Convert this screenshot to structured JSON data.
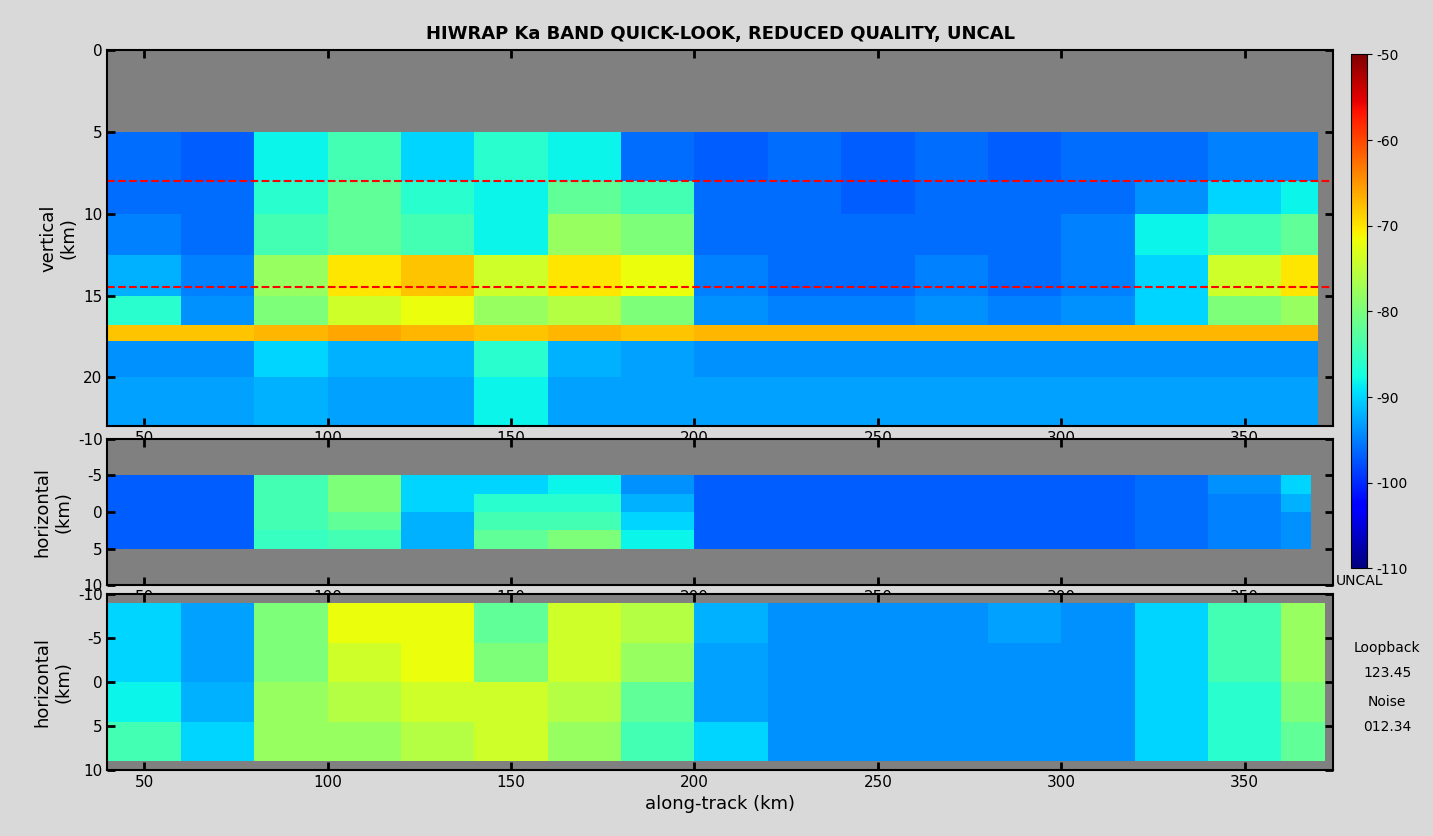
{
  "title": "HIWRAP Ka BAND QUICK-LOOK, REDUCED QUALITY, UNCAL",
  "colorbar": {
    "range": [
      -110,
      -50
    ],
    "ticks": [
      -50,
      -60,
      -70,
      -80,
      -90,
      -100,
      -110
    ],
    "label": "UNCAL"
  },
  "annotations": [
    "Loopback",
    "123.45",
    "Noise",
    "012.34"
  ],
  "chart_data": [
    {
      "type": "heatmap",
      "ylabel": "vertical\n(km)",
      "xlim": [
        40,
        374
      ],
      "xticks": [
        50,
        100,
        150,
        200,
        250,
        300,
        350
      ],
      "ylim": [
        23,
        0
      ],
      "yticks": [
        0,
        5,
        10,
        15,
        20
      ],
      "reference_lines": [
        8,
        14.5
      ],
      "x_edges": [
        40,
        60,
        80,
        100,
        120,
        140,
        160,
        180,
        200,
        220,
        240,
        260,
        280,
        300,
        320,
        340,
        360,
        370
      ],
      "y_edges": [
        5,
        8,
        10,
        12.5,
        15,
        16.8,
        17.8,
        20,
        23
      ],
      "cells": [
        [
          -96,
          -97,
          -88,
          -84,
          -90,
          -86,
          -88,
          -96,
          -97,
          -96,
          -97,
          -96,
          -97,
          -96,
          -96,
          -95,
          -95
        ],
        [
          -96,
          -96,
          -86,
          -82,
          -86,
          -88,
          -82,
          -84,
          -96,
          -96,
          -97,
          -96,
          -96,
          -96,
          -94,
          -90,
          -88
        ],
        [
          -95,
          -96,
          -84,
          -82,
          -84,
          -88,
          -78,
          -80,
          -96,
          -96,
          -96,
          -96,
          -96,
          -95,
          -88,
          -84,
          -82
        ],
        [
          -92,
          -95,
          -78,
          -70,
          -68,
          -74,
          -70,
          -72,
          -95,
          -96,
          -96,
          -95,
          -96,
          -95,
          -90,
          -74,
          -70
        ],
        [
          -86,
          -94,
          -80,
          -74,
          -72,
          -78,
          -76,
          -80,
          -94,
          -95,
          -95,
          -94,
          -95,
          -94,
          -90,
          -80,
          -78
        ],
        [
          -68,
          -68,
          -67,
          -66,
          -67,
          -68,
          -67,
          -68,
          -67,
          -67,
          -67,
          -67,
          -67,
          -67,
          -67,
          -67,
          -67
        ],
        [
          -94,
          -94,
          -90,
          -92,
          -92,
          -86,
          -92,
          -93,
          -94,
          -94,
          -94,
          -94,
          -94,
          -94,
          -94,
          -94,
          -94
        ],
        [
          -93,
          -93,
          -92,
          -93,
          -93,
          -88,
          -93,
          -93,
          -93,
          -93,
          -93,
          -93,
          -93,
          -93,
          -93,
          -93,
          -93
        ]
      ]
    },
    {
      "type": "heatmap",
      "ylabel": "horizontal\n(km)",
      "xlim": [
        40,
        374
      ],
      "xticks": [
        50,
        100,
        150,
        200,
        250,
        300,
        350
      ],
      "ylim": [
        10,
        -10
      ],
      "yticks": [
        -10,
        -5,
        0,
        5,
        10
      ],
      "x_edges": [
        40,
        60,
        80,
        100,
        120,
        140,
        160,
        180,
        200,
        220,
        240,
        260,
        280,
        300,
        320,
        340,
        360,
        368
      ],
      "y_edges": [
        -5,
        -2.5,
        0,
        2.5,
        5
      ],
      "cells": [
        [
          -97,
          -97,
          -84,
          -80,
          -90,
          -90,
          -88,
          -94,
          -97,
          -97,
          -97,
          -97,
          -97,
          -97,
          -96,
          -94,
          -90
        ],
        [
          -97,
          -97,
          -84,
          -80,
          -90,
          -86,
          -86,
          -92,
          -97,
          -97,
          -97,
          -97,
          -97,
          -97,
          -96,
          -95,
          -92
        ],
        [
          -97,
          -97,
          -84,
          -82,
          -92,
          -84,
          -84,
          -90,
          -97,
          -97,
          -97,
          -97,
          -97,
          -97,
          -96,
          -95,
          -94
        ],
        [
          -97,
          -97,
          -85,
          -84,
          -92,
          -82,
          -80,
          -88,
          -97,
          -97,
          -97,
          -97,
          -97,
          -97,
          -96,
          -95,
          -94
        ]
      ]
    },
    {
      "type": "heatmap",
      "ylabel": "horizontal\n(km)",
      "xlabel": "along-track (km)",
      "xlim": [
        40,
        374
      ],
      "xticks": [
        50,
        100,
        150,
        200,
        250,
        300,
        350
      ],
      "ylim": [
        10,
        -10
      ],
      "yticks": [
        -10,
        -5,
        0,
        5,
        10
      ],
      "x_edges": [
        40,
        60,
        80,
        100,
        120,
        140,
        160,
        180,
        200,
        220,
        240,
        260,
        280,
        300,
        320,
        340,
        360,
        372
      ],
      "y_edges": [
        -9,
        -4.5,
        0,
        4.5,
        9
      ],
      "cells": [
        [
          -90,
          -93,
          -80,
          -72,
          -72,
          -82,
          -74,
          -76,
          -92,
          -94,
          -94,
          -94,
          -93,
          -94,
          -90,
          -84,
          -78
        ],
        [
          -90,
          -93,
          -80,
          -74,
          -72,
          -80,
          -74,
          -78,
          -93,
          -94,
          -94,
          -94,
          -94,
          -94,
          -90,
          -84,
          -78
        ],
        [
          -88,
          -92,
          -78,
          -76,
          -74,
          -74,
          -76,
          -82,
          -93,
          -94,
          -94,
          -94,
          -94,
          -94,
          -90,
          -86,
          -80
        ],
        [
          -84,
          -90,
          -78,
          -78,
          -76,
          -74,
          -78,
          -84,
          -90,
          -94,
          -94,
          -94,
          -94,
          -94,
          -90,
          -86,
          -82
        ]
      ]
    }
  ]
}
